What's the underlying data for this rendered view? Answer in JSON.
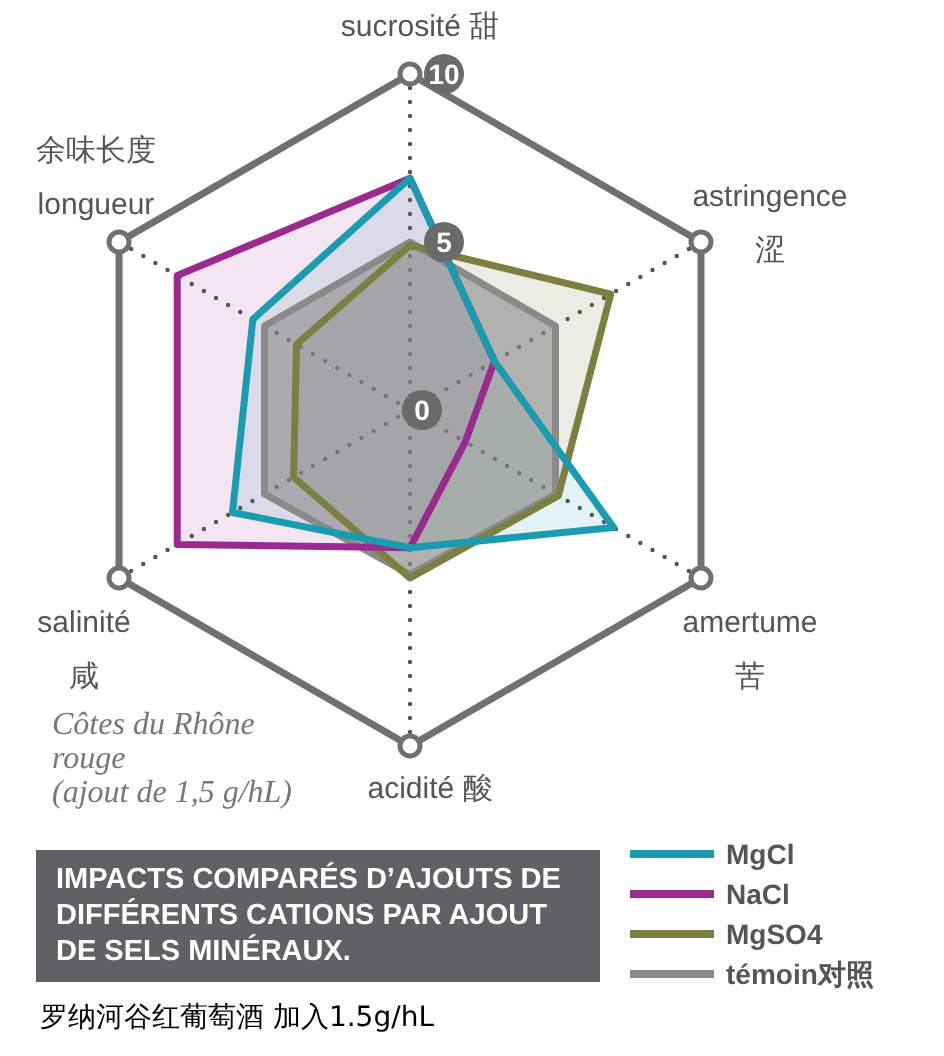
{
  "chart_data": {
    "type": "radar",
    "title": "IMPACTS COMPARÉS D’AJOUTS DE DIFFÉRENTS CATIONS PAR AJOUT DE SELS MINÉRAUX.",
    "categories": [
      "sucrosité 甜",
      "astringence 涩",
      "amertume 苦",
      "acidité 酸",
      "salinité 咸",
      "余味长度 longueur"
    ],
    "series": [
      {
        "name": "MgCl",
        "color": "#1a9bb0",
        "values": [
          6.9,
          2.9,
          7.0,
          4.1,
          6.1,
          5.4
        ]
      },
      {
        "name": "NaCl",
        "color": "#9b2a8e",
        "values": [
          6.9,
          2.9,
          1.9,
          4.1,
          8.0,
          8.0
        ]
      },
      {
        "name": "MgSO4",
        "color": "#7b8040",
        "values": [
          4.9,
          6.9,
          5.1,
          5.0,
          4.0,
          3.9
        ]
      },
      {
        "name": "témoin对照",
        "color": "#8a8a8a",
        "values": [
          5.0,
          5.0,
          5.0,
          4.9,
          5.0,
          5.0
        ]
      }
    ],
    "ylim": [
      0,
      10
    ],
    "yticks": [
      0,
      5,
      10
    ],
    "grid": true,
    "legend": "bottom right",
    "annotations": [
      "Côtes du Rhône rouge (ajout de 1,5 g/hL)",
      "罗纳河谷红葡萄酒 加入1.5g/hL"
    ]
  }
}
